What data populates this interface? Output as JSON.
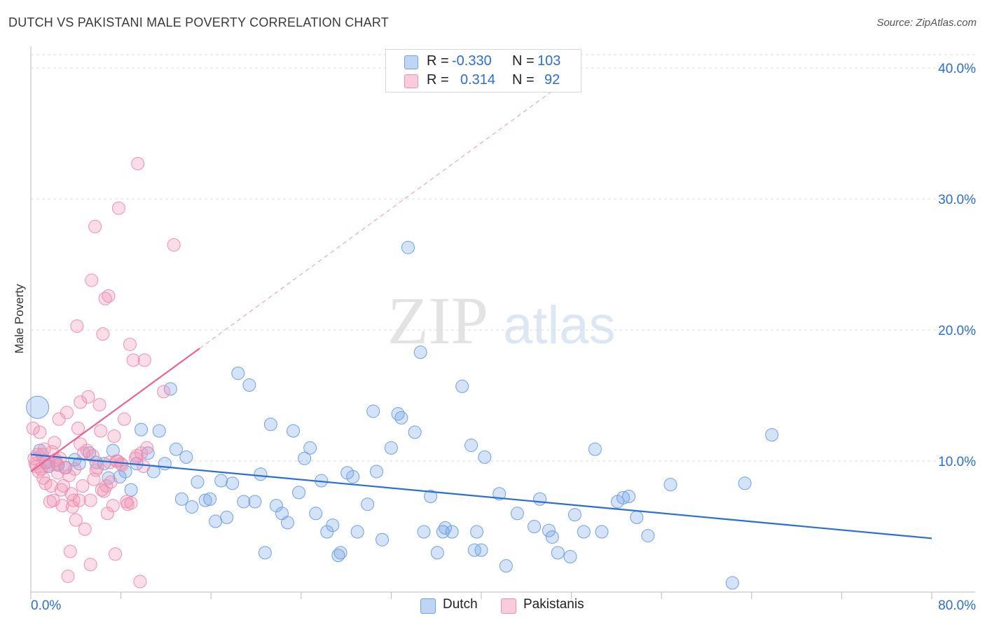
{
  "title": "DUTCH VS PAKISTANI MALE POVERTY CORRELATION CHART",
  "source": "Source: ZipAtlas.com",
  "watermark": {
    "zip": "ZIP",
    "atlas": "atlas"
  },
  "legend": {
    "rows": [
      {
        "r_label": "R =",
        "r_value": "-0.330",
        "n_label": "N =",
        "n_value": "103",
        "color": "#6fa1e6"
      },
      {
        "r_label": "R =",
        "r_value": "0.314",
        "n_label": "N =",
        "n_value": "92",
        "color": "#f08fb0"
      }
    ]
  },
  "bottom_legend": [
    {
      "label": "Dutch",
      "color": "#6fa1e6"
    },
    {
      "label": "Pakistanis",
      "color": "#f08fb0"
    }
  ],
  "chart_data": {
    "type": "scatter",
    "title": "DUTCH VS PAKISTANI MALE POVERTY CORRELATION CHART",
    "xlabel": "",
    "ylabel": "Male Poverty",
    "xlim": [
      0,
      80
    ],
    "ylim": [
      0,
      40
    ],
    "x_tick_labels": [
      "0.0%",
      "80.0%"
    ],
    "y_tick_labels": [
      "10.0%",
      "20.0%",
      "30.0%",
      "40.0%"
    ],
    "y_ticks": [
      10,
      20,
      30,
      40
    ],
    "grid": "horizontal dashed",
    "legend_position": "top-center",
    "series": [
      {
        "name": "Dutch",
        "color": "#6fa1e6",
        "trend": {
          "x": [
            0,
            80
          ],
          "y": [
            10.5,
            4.1
          ],
          "style": "solid"
        },
        "points": [
          [
            0.6,
            14.1,
            16
          ],
          [
            0.8,
            10.8,
            9
          ],
          [
            1.3,
            9.9,
            9
          ],
          [
            1.6,
            9.6,
            9
          ],
          [
            2.4,
            9.7,
            9
          ],
          [
            3.1,
            9.5,
            9
          ],
          [
            3.9,
            10.1,
            9
          ],
          [
            4.3,
            9.8,
            9
          ],
          [
            5.2,
            10.6,
            9
          ],
          [
            5.8,
            9.9,
            9
          ],
          [
            6.5,
            9.8,
            9
          ],
          [
            6.9,
            8.7,
            9
          ],
          [
            7.3,
            10.8,
            9
          ],
          [
            7.9,
            8.8,
            9
          ],
          [
            8.4,
            9.2,
            9
          ],
          [
            8.9,
            7.8,
            9
          ],
          [
            9.4,
            9.8,
            9
          ],
          [
            9.8,
            12.4,
            9
          ],
          [
            10.4,
            10.6,
            9
          ],
          [
            10.9,
            9.2,
            9
          ],
          [
            11.4,
            12.3,
            9
          ],
          [
            11.9,
            9.8,
            9
          ],
          [
            12.4,
            15.5,
            9
          ],
          [
            12.9,
            10.9,
            9
          ],
          [
            13.4,
            7.1,
            9
          ],
          [
            13.8,
            10.3,
            9
          ],
          [
            14.3,
            6.5,
            9
          ],
          [
            14.8,
            8.4,
            9
          ],
          [
            15.5,
            7.0,
            9
          ],
          [
            15.9,
            7.1,
            9
          ],
          [
            16.4,
            5.4,
            9
          ],
          [
            16.9,
            8.5,
            9
          ],
          [
            17.4,
            5.7,
            9
          ],
          [
            17.9,
            8.3,
            9
          ],
          [
            18.4,
            16.7,
            9
          ],
          [
            18.9,
            6.9,
            9
          ],
          [
            19.4,
            15.8,
            9
          ],
          [
            19.9,
            6.9,
            9
          ],
          [
            20.4,
            9.0,
            9
          ],
          [
            20.8,
            3.0,
            9
          ],
          [
            21.3,
            12.8,
            9
          ],
          [
            21.8,
            6.6,
            9
          ],
          [
            22.3,
            6.0,
            9
          ],
          [
            22.8,
            5.3,
            9
          ],
          [
            23.3,
            12.3,
            9
          ],
          [
            23.8,
            7.6,
            9
          ],
          [
            24.3,
            10.2,
            9
          ],
          [
            24.8,
            11.0,
            9
          ],
          [
            25.3,
            6.0,
            9
          ],
          [
            25.8,
            8.5,
            9
          ],
          [
            26.3,
            4.6,
            9
          ],
          [
            26.8,
            5.1,
            9
          ],
          [
            27.3,
            2.8,
            9
          ],
          [
            27.5,
            3.0,
            9
          ],
          [
            28.1,
            9.1,
            9
          ],
          [
            28.6,
            8.8,
            9
          ],
          [
            29.0,
            4.6,
            9
          ],
          [
            29.9,
            6.7,
            9
          ],
          [
            30.4,
            13.8,
            9
          ],
          [
            30.7,
            9.2,
            9
          ],
          [
            31.2,
            4.0,
            9
          ],
          [
            32.0,
            11.0,
            9
          ],
          [
            32.6,
            13.6,
            9
          ],
          [
            32.9,
            13.3,
            9
          ],
          [
            33.5,
            26.3,
            9
          ],
          [
            34.1,
            12.2,
            9
          ],
          [
            34.6,
            18.3,
            9
          ],
          [
            34.9,
            4.6,
            9
          ],
          [
            35.5,
            7.3,
            9
          ],
          [
            36.1,
            3.0,
            9
          ],
          [
            36.6,
            4.6,
            9
          ],
          [
            36.8,
            4.9,
            9
          ],
          [
            37.4,
            4.6,
            9
          ],
          [
            38.3,
            15.7,
            9
          ],
          [
            39.1,
            11.2,
            9
          ],
          [
            39.4,
            3.2,
            9
          ],
          [
            40.0,
            3.2,
            9
          ],
          [
            39.6,
            4.6,
            9
          ],
          [
            40.3,
            10.3,
            9
          ],
          [
            41.6,
            7.5,
            9
          ],
          [
            42.2,
            2.0,
            9
          ],
          [
            43.2,
            6.0,
            9
          ],
          [
            44.7,
            5.0,
            9
          ],
          [
            45.2,
            7.1,
            9
          ],
          [
            46.0,
            4.7,
            9
          ],
          [
            46.3,
            4.2,
            9
          ],
          [
            46.8,
            3.0,
            9
          ],
          [
            47.9,
            2.7,
            9
          ],
          [
            48.3,
            5.9,
            9
          ],
          [
            49.1,
            4.6,
            9
          ],
          [
            50.1,
            10.9,
            9
          ],
          [
            50.7,
            4.6,
            9
          ],
          [
            52.1,
            6.9,
            9
          ],
          [
            52.6,
            7.2,
            9
          ],
          [
            53.1,
            7.3,
            9
          ],
          [
            53.8,
            5.7,
            9
          ],
          [
            54.8,
            4.3,
            9
          ],
          [
            56.8,
            8.2,
            9
          ],
          [
            62.3,
            0.7,
            9
          ],
          [
            63.4,
            8.3,
            9
          ],
          [
            65.8,
            12.0,
            9
          ]
        ]
      },
      {
        "name": "Pakistanis",
        "color": "#f08fb0",
        "trend": {
          "x": [
            0,
            15
          ],
          "y": [
            9.2,
            18.6
          ],
          "style": "solid"
        },
        "trend_extended": {
          "x": [
            15,
            48
          ],
          "y": [
            18.6,
            39.3
          ],
          "style": "dashed"
        },
        "points": [
          [
            0.2,
            12.5,
            9
          ],
          [
            0.3,
            10.2,
            9
          ],
          [
            0.4,
            9.8,
            9
          ],
          [
            0.6,
            10.5,
            9
          ],
          [
            0.8,
            12.2,
            9
          ],
          [
            0.9,
            9.4,
            9
          ],
          [
            1.1,
            8.7,
            9
          ],
          [
            1.2,
            10.9,
            9
          ],
          [
            1.5,
            9.7,
            9
          ],
          [
            1.6,
            9.9,
            9
          ],
          [
            1.8,
            8.1,
            9
          ],
          [
            1.9,
            10.7,
            9
          ],
          [
            2.0,
            7.0,
            9
          ],
          [
            2.2,
            10.1,
            9
          ],
          [
            2.3,
            9.8,
            9
          ],
          [
            2.5,
            13.2,
            9
          ],
          [
            2.7,
            7.8,
            9
          ],
          [
            2.9,
            8.1,
            9
          ],
          [
            3.0,
            9.5,
            9
          ],
          [
            3.2,
            13.7,
            9
          ],
          [
            3.3,
            1.2,
            9
          ],
          [
            3.5,
            3.1,
            9
          ],
          [
            3.7,
            6.5,
            9
          ],
          [
            3.8,
            7.0,
            9
          ],
          [
            4.0,
            5.5,
            9
          ],
          [
            4.2,
            12.5,
            9
          ],
          [
            4.4,
            14.5,
            9
          ],
          [
            4.6,
            8.1,
            9
          ],
          [
            4.8,
            4.8,
            9
          ],
          [
            5.0,
            10.8,
            9
          ],
          [
            5.1,
            14.9,
            9
          ],
          [
            5.3,
            7.0,
            9
          ],
          [
            5.4,
            23.8,
            9
          ],
          [
            5.5,
            10.4,
            9
          ],
          [
            5.7,
            27.9,
            9
          ],
          [
            5.9,
            9.5,
            9
          ],
          [
            6.1,
            14.3,
            9
          ],
          [
            6.2,
            12.3,
            9
          ],
          [
            6.4,
            19.7,
            9
          ],
          [
            6.5,
            7.7,
            9
          ],
          [
            6.6,
            22.4,
            9
          ],
          [
            6.8,
            6.0,
            9
          ],
          [
            6.9,
            22.6,
            9
          ],
          [
            7.1,
            8.4,
            9
          ],
          [
            7.3,
            6.6,
            9
          ],
          [
            7.4,
            11.9,
            9
          ],
          [
            7.5,
            2.9,
            9
          ],
          [
            7.6,
            10.0,
            9
          ],
          [
            7.8,
            29.3,
            9
          ],
          [
            8.0,
            9.8,
            9
          ],
          [
            8.1,
            9.7,
            9
          ],
          [
            8.3,
            13.2,
            9
          ],
          [
            8.6,
            6.7,
            9
          ],
          [
            8.8,
            18.9,
            9
          ],
          [
            9.1,
            17.7,
            9
          ],
          [
            9.3,
            10.2,
            9
          ],
          [
            9.5,
            32.7,
            9
          ],
          [
            9.8,
            10.6,
            9
          ],
          [
            10.0,
            9.6,
            9
          ],
          [
            10.1,
            17.7,
            9
          ],
          [
            10.3,
            11.0,
            9
          ],
          [
            11.8,
            15.3,
            9
          ],
          [
            12.7,
            26.5,
            9
          ],
          [
            4.1,
            20.3,
            9
          ],
          [
            3.6,
            7.5,
            9
          ],
          [
            2.1,
            11.4,
            9
          ],
          [
            1.3,
            8.3,
            9
          ],
          [
            0.7,
            9.2,
            9
          ],
          [
            2.8,
            6.6,
            9
          ],
          [
            4.3,
            7.0,
            9
          ],
          [
            6.7,
            8.1,
            9
          ],
          [
            5.8,
            9.3,
            9
          ],
          [
            3.4,
            8.9,
            9
          ],
          [
            1.0,
            10.5,
            9
          ],
          [
            0.5,
            9.6,
            9
          ],
          [
            2.6,
            10.2,
            9
          ],
          [
            4.7,
            10.6,
            9
          ],
          [
            3.9,
            9.4,
            9
          ],
          [
            6.3,
            7.8,
            9
          ],
          [
            7.0,
            9.9,
            9
          ],
          [
            8.5,
            6.9,
            9
          ],
          [
            9.4,
            10.4,
            9
          ],
          [
            4.4,
            11.3,
            9
          ],
          [
            1.7,
            6.9,
            9
          ],
          [
            2.4,
            9.1,
            9
          ],
          [
            5.6,
            8.6,
            9
          ],
          [
            7.7,
            10.0,
            9
          ],
          [
            9.7,
            0.8,
            9
          ],
          [
            5.3,
            2.1,
            9
          ],
          [
            8.9,
            6.8,
            9
          ]
        ]
      }
    ]
  }
}
